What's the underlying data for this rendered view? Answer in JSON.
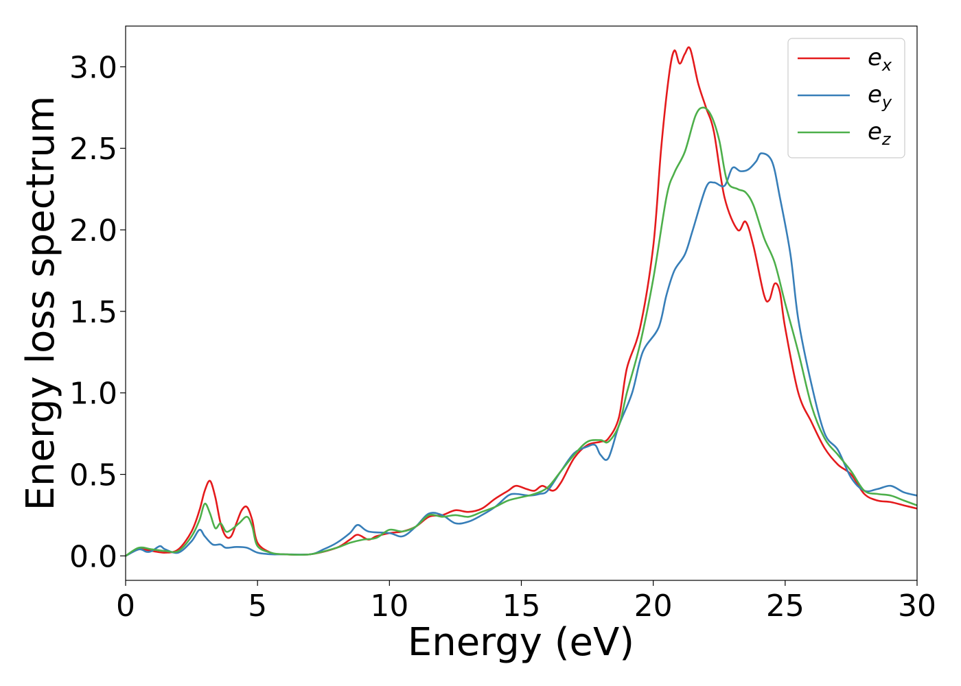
{
  "chart_data": {
    "type": "line",
    "xlabel": "Energy (eV)",
    "ylabel": "Energy loss spectrum",
    "xlim": [
      0,
      30
    ],
    "ylim": [
      -0.15,
      3.25
    ],
    "xticks": [
      0,
      5,
      10,
      15,
      20,
      25,
      30
    ],
    "xtick_labels": [
      "0",
      "5",
      "10",
      "15",
      "20",
      "25",
      "30"
    ],
    "yticks": [
      0.0,
      0.5,
      1.0,
      1.5,
      2.0,
      2.5,
      3.0
    ],
    "ytick_labels": [
      "0.0",
      "0.5",
      "1.0",
      "1.5",
      "2.0",
      "2.5",
      "3.0"
    ],
    "grid": false,
    "legend_position": "top-right",
    "series": [
      {
        "name": "e_x",
        "label_base": "e",
        "label_sub": "x",
        "color": "#e41a1c",
        "points": [
          [
            0,
            0
          ],
          [
            0.5,
            0.04
          ],
          [
            1,
            0.03
          ],
          [
            1.5,
            0.02
          ],
          [
            2,
            0.04
          ],
          [
            2.5,
            0.15
          ],
          [
            2.8,
            0.28
          ],
          [
            3.0,
            0.4
          ],
          [
            3.2,
            0.46
          ],
          [
            3.4,
            0.36
          ],
          [
            3.6,
            0.2
          ],
          [
            3.8,
            0.12
          ],
          [
            4.0,
            0.12
          ],
          [
            4.2,
            0.2
          ],
          [
            4.4,
            0.28
          ],
          [
            4.6,
            0.3
          ],
          [
            4.8,
            0.22
          ],
          [
            5.0,
            0.08
          ],
          [
            5.5,
            0.02
          ],
          [
            6,
            0.01
          ],
          [
            7,
            0.01
          ],
          [
            8,
            0.05
          ],
          [
            8.5,
            0.1
          ],
          [
            8.8,
            0.13
          ],
          [
            9.2,
            0.1
          ],
          [
            9.5,
            0.12
          ],
          [
            10,
            0.14
          ],
          [
            10.5,
            0.15
          ],
          [
            11,
            0.18
          ],
          [
            11.5,
            0.24
          ],
          [
            12,
            0.25
          ],
          [
            12.5,
            0.28
          ],
          [
            13,
            0.27
          ],
          [
            13.5,
            0.29
          ],
          [
            14,
            0.35
          ],
          [
            14.5,
            0.4
          ],
          [
            14.8,
            0.43
          ],
          [
            15.2,
            0.41
          ],
          [
            15.5,
            0.4
          ],
          [
            15.8,
            0.43
          ],
          [
            16.2,
            0.4
          ],
          [
            16.5,
            0.45
          ],
          [
            17,
            0.6
          ],
          [
            17.5,
            0.68
          ],
          [
            18,
            0.7
          ],
          [
            18.3,
            0.72
          ],
          [
            18.7,
            0.85
          ],
          [
            19,
            1.15
          ],
          [
            19.5,
            1.4
          ],
          [
            20,
            1.9
          ],
          [
            20.3,
            2.5
          ],
          [
            20.6,
            2.95
          ],
          [
            20.8,
            3.1
          ],
          [
            21.0,
            3.02
          ],
          [
            21.2,
            3.08
          ],
          [
            21.4,
            3.11
          ],
          [
            21.7,
            2.9
          ],
          [
            22,
            2.75
          ],
          [
            22.3,
            2.6
          ],
          [
            22.7,
            2.2
          ],
          [
            23.2,
            2.0
          ],
          [
            23.5,
            2.05
          ],
          [
            23.8,
            1.9
          ],
          [
            24.2,
            1.6
          ],
          [
            24.4,
            1.57
          ],
          [
            24.6,
            1.67
          ],
          [
            24.8,
            1.62
          ],
          [
            25,
            1.4
          ],
          [
            25.5,
            1.0
          ],
          [
            26,
            0.82
          ],
          [
            26.5,
            0.66
          ],
          [
            27,
            0.56
          ],
          [
            27.5,
            0.5
          ],
          [
            28,
            0.38
          ],
          [
            28.5,
            0.34
          ],
          [
            29,
            0.33
          ],
          [
            29.5,
            0.31
          ],
          [
            30,
            0.29
          ]
        ]
      },
      {
        "name": "e_y",
        "label_base": "e",
        "label_sub": "y",
        "color": "#377eb8",
        "points": [
          [
            0,
            0
          ],
          [
            0.5,
            0.04
          ],
          [
            0.8,
            0.025
          ],
          [
            1,
            0.03
          ],
          [
            1.3,
            0.06
          ],
          [
            1.5,
            0.04
          ],
          [
            2,
            0.02
          ],
          [
            2.5,
            0.09
          ],
          [
            2.8,
            0.16
          ],
          [
            3.0,
            0.12
          ],
          [
            3.3,
            0.07
          ],
          [
            3.6,
            0.07
          ],
          [
            3.8,
            0.05
          ],
          [
            4.2,
            0.055
          ],
          [
            4.6,
            0.05
          ],
          [
            5.0,
            0.02
          ],
          [
            5.5,
            0.01
          ],
          [
            6,
            0.01
          ],
          [
            7,
            0.01
          ],
          [
            7.5,
            0.04
          ],
          [
            8,
            0.08
          ],
          [
            8.5,
            0.14
          ],
          [
            8.8,
            0.19
          ],
          [
            9.2,
            0.15
          ],
          [
            10,
            0.14
          ],
          [
            10.5,
            0.12
          ],
          [
            11,
            0.18
          ],
          [
            11.5,
            0.26
          ],
          [
            12,
            0.25
          ],
          [
            12.5,
            0.2
          ],
          [
            13,
            0.21
          ],
          [
            13.5,
            0.25
          ],
          [
            14,
            0.3
          ],
          [
            14.5,
            0.37
          ],
          [
            14.8,
            0.38
          ],
          [
            15.3,
            0.37
          ],
          [
            15.7,
            0.38
          ],
          [
            16,
            0.4
          ],
          [
            16.5,
            0.52
          ],
          [
            17,
            0.63
          ],
          [
            17.5,
            0.67
          ],
          [
            17.8,
            0.68
          ],
          [
            18,
            0.62
          ],
          [
            18.3,
            0.6
          ],
          [
            18.7,
            0.8
          ],
          [
            19.2,
            1.0
          ],
          [
            19.6,
            1.25
          ],
          [
            20.2,
            1.4
          ],
          [
            20.5,
            1.6
          ],
          [
            20.8,
            1.75
          ],
          [
            21.2,
            1.85
          ],
          [
            21.5,
            2.0
          ],
          [
            22,
            2.26
          ],
          [
            22.3,
            2.29
          ],
          [
            22.7,
            2.27
          ],
          [
            23,
            2.38
          ],
          [
            23.3,
            2.36
          ],
          [
            23.6,
            2.37
          ],
          [
            23.9,
            2.42
          ],
          [
            24.1,
            2.47
          ],
          [
            24.5,
            2.42
          ],
          [
            24.8,
            2.2
          ],
          [
            25.2,
            1.85
          ],
          [
            25.5,
            1.45
          ],
          [
            26,
            1.05
          ],
          [
            26.5,
            0.75
          ],
          [
            27,
            0.65
          ],
          [
            27.5,
            0.48
          ],
          [
            28,
            0.4
          ],
          [
            28.5,
            0.41
          ],
          [
            29,
            0.43
          ],
          [
            29.5,
            0.39
          ],
          [
            30,
            0.37
          ]
        ]
      },
      {
        "name": "e_z",
        "label_base": "e",
        "label_sub": "z",
        "color": "#4daf4a",
        "points": [
          [
            0,
            0
          ],
          [
            0.5,
            0.05
          ],
          [
            1,
            0.04
          ],
          [
            1.5,
            0.03
          ],
          [
            2,
            0.03
          ],
          [
            2.5,
            0.12
          ],
          [
            2.8,
            0.22
          ],
          [
            3.0,
            0.32
          ],
          [
            3.2,
            0.26
          ],
          [
            3.4,
            0.17
          ],
          [
            3.6,
            0.2
          ],
          [
            3.8,
            0.15
          ],
          [
            4.0,
            0.16
          ],
          [
            4.3,
            0.2
          ],
          [
            4.6,
            0.24
          ],
          [
            4.8,
            0.18
          ],
          [
            5.0,
            0.06
          ],
          [
            5.5,
            0.02
          ],
          [
            6,
            0.01
          ],
          [
            7,
            0.01
          ],
          [
            8,
            0.05
          ],
          [
            8.5,
            0.08
          ],
          [
            9,
            0.1
          ],
          [
            9.5,
            0.11
          ],
          [
            10,
            0.16
          ],
          [
            10.5,
            0.15
          ],
          [
            11,
            0.18
          ],
          [
            11.5,
            0.25
          ],
          [
            12,
            0.24
          ],
          [
            12.5,
            0.25
          ],
          [
            13,
            0.24
          ],
          [
            13.5,
            0.27
          ],
          [
            14,
            0.3
          ],
          [
            14.5,
            0.34
          ],
          [
            15,
            0.36
          ],
          [
            15.5,
            0.38
          ],
          [
            16,
            0.42
          ],
          [
            16.5,
            0.52
          ],
          [
            17,
            0.62
          ],
          [
            17.5,
            0.7
          ],
          [
            18,
            0.71
          ],
          [
            18.3,
            0.7
          ],
          [
            18.7,
            0.8
          ],
          [
            19,
            1.0
          ],
          [
            19.5,
            1.3
          ],
          [
            20,
            1.7
          ],
          [
            20.5,
            2.2
          ],
          [
            20.8,
            2.35
          ],
          [
            21.2,
            2.48
          ],
          [
            21.6,
            2.7
          ],
          [
            21.9,
            2.75
          ],
          [
            22.2,
            2.7
          ],
          [
            22.5,
            2.55
          ],
          [
            22.8,
            2.3
          ],
          [
            23.2,
            2.25
          ],
          [
            23.5,
            2.23
          ],
          [
            23.8,
            2.15
          ],
          [
            24.2,
            1.95
          ],
          [
            24.6,
            1.8
          ],
          [
            25,
            1.55
          ],
          [
            25.5,
            1.25
          ],
          [
            26,
            0.92
          ],
          [
            26.5,
            0.72
          ],
          [
            27,
            0.62
          ],
          [
            27.5,
            0.52
          ],
          [
            28,
            0.4
          ],
          [
            28.5,
            0.38
          ],
          [
            29,
            0.37
          ],
          [
            29.5,
            0.34
          ],
          [
            30,
            0.31
          ]
        ]
      }
    ]
  }
}
